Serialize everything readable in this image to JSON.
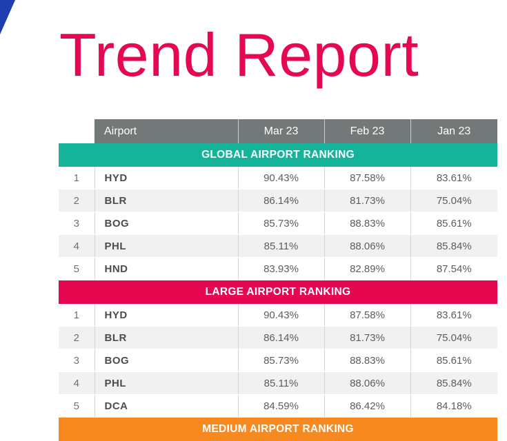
{
  "report": {
    "title": "Trend Report",
    "accent_color": "#e5074f",
    "corner_color": "#1f3fb0"
  },
  "table": {
    "columns": {
      "airport": "Airport",
      "mar": "Mar 23",
      "feb": "Feb 23",
      "jan": "Jan 23"
    },
    "sections": [
      {
        "title": "GLOBAL AIRPORT RANKING",
        "color": "#14b49a",
        "rows": [
          {
            "rank": "1",
            "airport": "HYD",
            "mar": "90.43%",
            "feb": "87.58%",
            "jan": "83.61%"
          },
          {
            "rank": "2",
            "airport": "BLR",
            "mar": "86.14%",
            "feb": "81.73%",
            "jan": "75.04%"
          },
          {
            "rank": "3",
            "airport": "BOG",
            "mar": "85.73%",
            "feb": "88.83%",
            "jan": "85.61%"
          },
          {
            "rank": "4",
            "airport": "PHL",
            "mar": "85.11%",
            "feb": "88.06%",
            "jan": "85.84%"
          },
          {
            "rank": "5",
            "airport": "HND",
            "mar": "83.93%",
            "feb": "82.89%",
            "jan": "87.54%"
          }
        ]
      },
      {
        "title": "LARGE AIRPORT RANKING",
        "color": "#e5074f",
        "rows": [
          {
            "rank": "1",
            "airport": "HYD",
            "mar": "90.43%",
            "feb": "87.58%",
            "jan": "83.61%"
          },
          {
            "rank": "2",
            "airport": "BLR",
            "mar": "86.14%",
            "feb": "81.73%",
            "jan": "75.04%"
          },
          {
            "rank": "3",
            "airport": "BOG",
            "mar": "85.73%",
            "feb": "88.83%",
            "jan": "85.61%"
          },
          {
            "rank": "4",
            "airport": "PHL",
            "mar": "85.11%",
            "feb": "88.06%",
            "jan": "85.84%"
          },
          {
            "rank": "5",
            "airport": "DCA",
            "mar": "84.59%",
            "feb": "86.42%",
            "jan": "84.18%"
          }
        ]
      },
      {
        "title": "MEDIUM AIRPORT RANKING",
        "color": "#f7891f",
        "rows": []
      }
    ]
  }
}
